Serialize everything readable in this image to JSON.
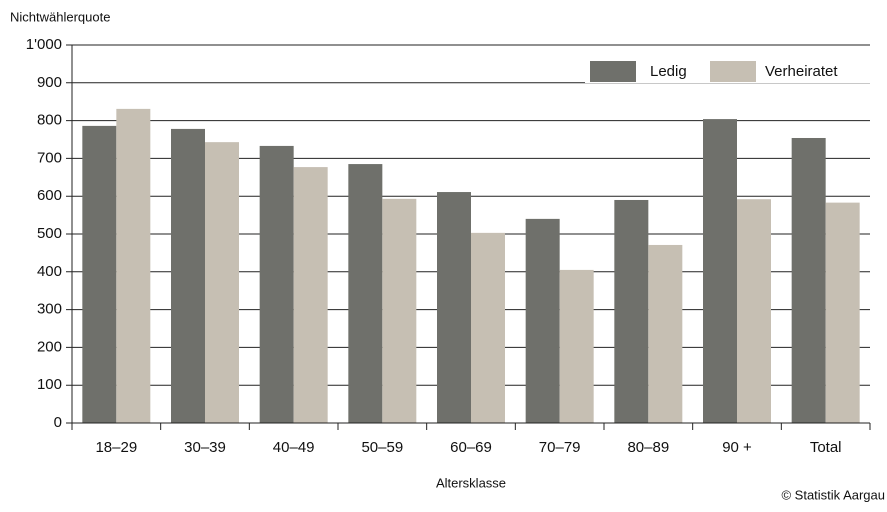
{
  "chart_data": {
    "type": "bar",
    "y_label": "Nichtwählerquote",
    "x_label": "Altersklasse",
    "source": "© Statistik Aargau",
    "categories": [
      "18–29",
      "30–39",
      "40–49",
      "50–59",
      "60–69",
      "70–79",
      "80–89",
      "90 +",
      "Total"
    ],
    "series": [
      {
        "name": "Ledig",
        "color": "#6f706b",
        "values": [
          786,
          778,
          733,
          685,
          611,
          540,
          590,
          804,
          754
        ]
      },
      {
        "name": "Verheiratet",
        "color": "#c6bfb3",
        "values": [
          831,
          743,
          677,
          593,
          503,
          405,
          471,
          592,
          583
        ]
      }
    ],
    "ylim": [
      0,
      1000
    ],
    "yticks": [
      0,
      100,
      200,
      300,
      400,
      500,
      600,
      700,
      800,
      900,
      {
        "value": 1000,
        "label": "1'000"
      }
    ],
    "grid": true,
    "legend": "top-right"
  }
}
